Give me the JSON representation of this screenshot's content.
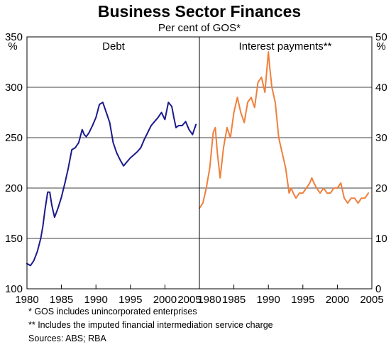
{
  "chart_data": {
    "type": "line",
    "title": "Business Sector Finances",
    "subtitle": "Per cent of GOS*",
    "footnotes": [
      "*   GOS includes unincorporated enterprises",
      "** Includes the imputed financial intermediation service charge",
      "Sources: ABS; RBA"
    ],
    "grid": true,
    "panels": [
      {
        "label": "Debt",
        "unit": "%",
        "y_axis_side": "left",
        "ylim": [
          100,
          350
        ],
        "yticks": [
          100,
          150,
          200,
          250,
          300,
          350
        ],
        "xlim": [
          1980,
          2005
        ],
        "xticks": [
          1980,
          1985,
          1990,
          1995,
          2000,
          2005
        ],
        "color": "#1a1a8c",
        "series": [
          {
            "x": [
              1980.0,
              1980.5,
              1981.0,
              1981.5,
              1982.0,
              1982.3,
              1982.6,
              1983.0,
              1983.3,
              1983.6,
              1984.0,
              1984.5,
              1985.0,
              1985.5,
              1986.0,
              1986.5,
              1987.0,
              1987.5,
              1988.0,
              1988.3,
              1988.6,
              1989.0,
              1989.5,
              1990.0,
              1990.5,
              1991.0,
              1991.5,
              1992.0,
              1992.5,
              1993.0,
              1993.5,
              1994.0,
              1994.5,
              1995.0,
              1995.5,
              1996.0,
              1996.5,
              1997.0,
              1997.5,
              1998.0,
              1998.5,
              1999.0,
              1999.5,
              2000.0,
              2000.5,
              2001.0,
              2001.3,
              2001.6,
              2002.0,
              2002.5,
              2003.0,
              2003.5,
              2004.0,
              2004.5
            ],
            "y": [
              125,
              123,
              128,
              137,
              150,
              162,
              178,
              196,
              196,
              183,
              171,
              180,
              191,
              205,
              220,
              238,
              240,
              245,
              258,
              253,
              251,
              255,
              262,
              270,
              283,
              285,
              275,
              265,
              245,
              235,
              228,
              222,
              226,
              230,
              233,
              236,
              240,
              248,
              255,
              262,
              266,
              270,
              275,
              268,
              285,
              281,
              270,
              260,
              262,
              262,
              266,
              258,
              253,
              263
            ]
          }
        ]
      },
      {
        "label": "Interest payments**",
        "unit": "%",
        "y_axis_side": "right",
        "ylim": [
          0,
          50
        ],
        "yticks": [
          0,
          10,
          20,
          30,
          40,
          50
        ],
        "xlim": [
          1980,
          2005
        ],
        "xticks": [
          1980,
          1985,
          1990,
          1995,
          2000,
          2005
        ],
        "color": "#f07f3c",
        "series": [
          {
            "x": [
              1980.0,
              1980.5,
              1981.0,
              1981.5,
              1982.0,
              1982.3,
              1982.6,
              1983.0,
              1983.5,
              1984.0,
              1984.5,
              1985.0,
              1985.5,
              1986.0,
              1986.5,
              1987.0,
              1987.5,
              1988.0,
              1988.5,
              1989.0,
              1989.5,
              1990.0,
              1990.2,
              1990.5,
              1991.0,
              1991.5,
              1992.0,
              1992.5,
              1993.0,
              1993.3,
              1993.6,
              1994.0,
              1994.5,
              1995.0,
              1995.5,
              1996.0,
              1996.3,
              1996.6,
              1997.0,
              1997.5,
              1998.0,
              1998.5,
              1999.0,
              1999.5,
              2000.0,
              2000.5,
              2001.0,
              2001.5,
              2002.0,
              2002.5,
              2003.0,
              2003.5,
              2004.0,
              2004.5
            ],
            "y": [
              16,
              17,
              20,
              24,
              31,
              32,
              27,
              22,
              28,
              32,
              30,
              35,
              38,
              35,
              33,
              37,
              38,
              36,
              41,
              42,
              39,
              47,
              44,
              40,
              37,
              30,
              27,
              24,
              19,
              20,
              19,
              18,
              19,
              19,
              20,
              21,
              22,
              21,
              20,
              19,
              20,
              19,
              19,
              20,
              20,
              21,
              18,
              17,
              18,
              18,
              17,
              18,
              18,
              19
            ]
          }
        ]
      }
    ]
  }
}
